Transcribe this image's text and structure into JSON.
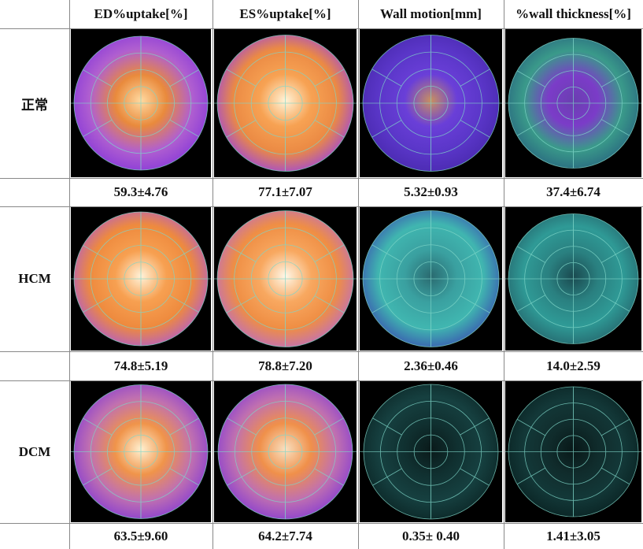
{
  "header": {
    "columns": [
      "ED%uptake[%]",
      "ES%uptake[%]",
      "Wall motion[mm]",
      "%wall thickness[%]"
    ]
  },
  "rows": [
    {
      "label": "正常",
      "values": [
        "59.3±4.76",
        "77.1±7.07",
        "5.32±0.93",
        "37.4±6.74"
      ]
    },
    {
      "label": "HCM",
      "values": [
        "74.8±5.19",
        "78.8±7.20",
        "2.36±0.46",
        "14.0±2.59"
      ]
    },
    {
      "label": "DCM",
      "values": [
        "63.5±9.60",
        "64.2±7.74",
        "0.35± 0.40",
        "1.41±3.05"
      ]
    }
  ]
}
